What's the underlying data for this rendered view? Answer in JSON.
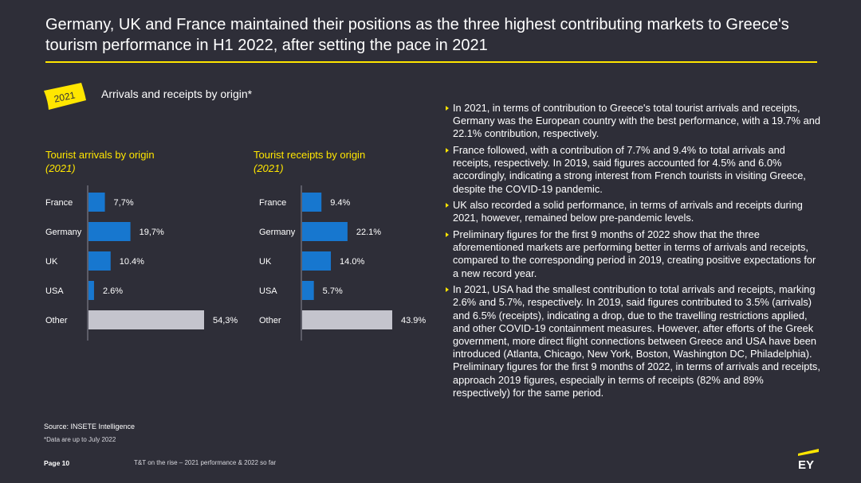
{
  "title": "Germany, UK and France maintained their positions as the three highest contributing markets to Greece's tourism performance in H1 2022, after setting the pace in 2021",
  "badge": "2021",
  "section_heading": "Arrivals and receipts by origin*",
  "chart_data": [
    {
      "type": "bar",
      "orientation": "horizontal",
      "title": "Tourist arrivals by origin",
      "subtitle": "(2021)",
      "categories": [
        "France",
        "Germany",
        "UK",
        "USA",
        "Other"
      ],
      "values": [
        7.7,
        19.7,
        10.4,
        2.6,
        54.3
      ],
      "value_labels": [
        "7,7%",
        "19,7%",
        "10.4%",
        "2.6%",
        "54,3%"
      ],
      "colors": [
        "#1777cf",
        "#1777cf",
        "#1777cf",
        "#1777cf",
        "#c4c4cd"
      ],
      "xlim": [
        0,
        54.3
      ],
      "grid": false
    },
    {
      "type": "bar",
      "orientation": "horizontal",
      "title": "Tourist receipts by origin",
      "subtitle": "(2021)",
      "categories": [
        "France",
        "Germany",
        "UK",
        "USA",
        "Other"
      ],
      "values": [
        9.4,
        22.1,
        14.0,
        5.7,
        43.9
      ],
      "value_labels": [
        "9.4%",
        "22.1%",
        "14.0%",
        "5.7%",
        "43.9%"
      ],
      "colors": [
        "#1777cf",
        "#1777cf",
        "#1777cf",
        "#1777cf",
        "#c4c4cd"
      ],
      "xlim": [
        0,
        43.9
      ],
      "grid": false
    }
  ],
  "bullets": [
    "In 2021, in terms of contribution to Greece's total tourist arrivals and receipts, Germany was the European country with the best performance, with a 19.7% and 22.1% contribution, respectively.",
    "France followed, with a contribution of 7.7% and 9.4% to total arrivals and receipts, respectively. In 2019, said figures accounted for 4.5% and 6.0% accordingly, indicating a strong interest from French tourists in visiting Greece, despite the COVID-19 pandemic.",
    "UK also recorded a solid performance, in terms of arrivals and receipts during 2021, however, remained below pre-pandemic levels.",
    "Preliminary figures for the first 9 months of 2022 show that the three aforementioned markets are performing better in terms of arrivals and receipts, compared to the corresponding period in 2019, creating positive expectations for a new record year.",
    "In 2021, USA had the smallest contribution to total arrivals and receipts, marking 2.6% and 5.7%, respectively. In 2019, said figures contributed to 3.5% (arrivals) and 6.5% (receipts), indicating a drop, due to the travelling restrictions applied, and other COVID-19 containment measures. However, after efforts of the Greek government, more direct flight connections between Greece and USA have been introduced (Atlanta, Chicago, New York, Boston, Washington DC, Philadelphia). Preliminary figures for the first 9 months of 2022, in terms of arrivals and receipts, approach 2019 figures, especially in terms of receipts (82% and 89% respectively) for the same period."
  ],
  "source": "Source: INSETE Intelligence",
  "note": "*Data are up to July 2022",
  "footer": {
    "page": "Page 10",
    "doc": "T&T on the rise – 2021 performance & 2022 so far"
  },
  "logo_text": "EY",
  "colors": {
    "background": "#2e2e38",
    "accent": "#ffe600",
    "bar_primary": "#1777cf",
    "bar_other": "#c4c4cd"
  }
}
